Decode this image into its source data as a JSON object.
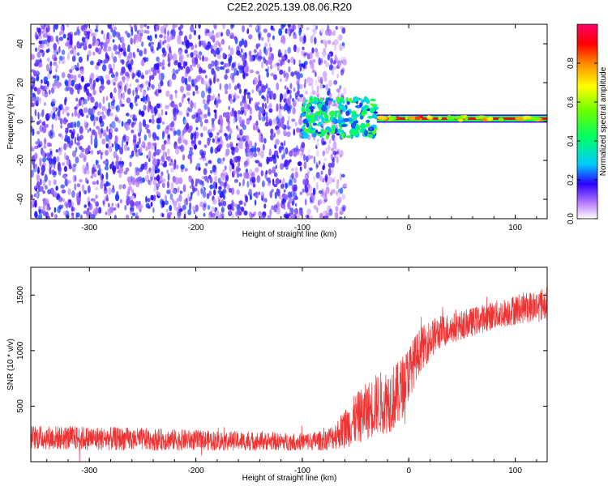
{
  "title": "C2E2.2025.139.08.06.R20",
  "chart_data": [
    {
      "type": "heatmap",
      "xlabel": "Height of straight line (km)",
      "ylabel": "Frequency (Hz)",
      "xlim": [
        -355,
        130
      ],
      "ylim": [
        -50,
        50
      ],
      "xticks": [
        -300,
        -200,
        -100,
        0,
        100
      ],
      "xtick_labels": [
        "-300",
        "-200",
        "-100",
        "0",
        "100"
      ],
      "yticks": [
        -40,
        -20,
        0,
        20,
        40
      ],
      "ytick_labels": [
        "-40",
        "-20",
        "0",
        "20",
        "40"
      ],
      "colorbar": {
        "label": "Normalized spectral amplitude",
        "range": [
          0,
          1
        ],
        "ticks": [
          0.0,
          0.2,
          0.4,
          0.6,
          0.8
        ],
        "tick_labels": [
          "0.0",
          "0.2",
          "0.4",
          "0.6",
          "0.8"
        ]
      },
      "features": [
        {
          "description_kind": "noise_region",
          "x_range": [
            -355,
            -60
          ],
          "freq_range": [
            -50,
            50
          ],
          "amplitude": 0.15
        },
        {
          "description_kind": "scatter_transition",
          "x_range": [
            -100,
            -30
          ],
          "freq_range": [
            -8,
            12
          ],
          "amplitude": 0.35
        },
        {
          "description_kind": "carrier_line",
          "x_range": [
            -30,
            130
          ],
          "freq": 1.5,
          "amplitude": 0.9
        }
      ],
      "grid": false
    },
    {
      "type": "line",
      "xlabel": "Height of straight line (km)",
      "ylabel": "SNR (10 * v/v)",
      "xlim": [
        -355,
        130
      ],
      "ylim": [
        0,
        1750
      ],
      "xticks": [
        -300,
        -200,
        -100,
        0,
        100
      ],
      "xtick_labels": [
        "-300",
        "-200",
        "-100",
        "0",
        "100"
      ],
      "yticks": [
        500,
        1000,
        1500
      ],
      "ytick_labels": [
        "500",
        "1000",
        "1500"
      ],
      "series": [
        {
          "color": "#ee3333",
          "x": [
            -355,
            -330,
            -300,
            -270,
            -240,
            -210,
            -180,
            -150,
            -120,
            -100,
            -80,
            -70,
            -60,
            -50,
            -40,
            -30,
            -20,
            -10,
            0,
            10,
            20,
            30,
            40,
            50,
            60,
            70,
            80,
            90,
            100,
            110,
            120,
            130
          ],
          "y": [
            220,
            215,
            210,
            205,
            200,
            195,
            190,
            185,
            180,
            180,
            190,
            230,
            300,
            380,
            450,
            520,
            550,
            600,
            800,
            1000,
            1100,
            1170,
            1200,
            1230,
            1260,
            1290,
            1320,
            1340,
            1370,
            1390,
            1400,
            1430
          ],
          "noise_half_width": [
            110,
            110,
            110,
            105,
            100,
            95,
            90,
            85,
            80,
            80,
            90,
            120,
            180,
            230,
            260,
            280,
            300,
            300,
            250,
            200,
            180,
            150,
            140,
            130,
            130,
            130,
            130,
            130,
            140,
            140,
            150,
            150
          ]
        }
      ],
      "grid": false
    }
  ]
}
